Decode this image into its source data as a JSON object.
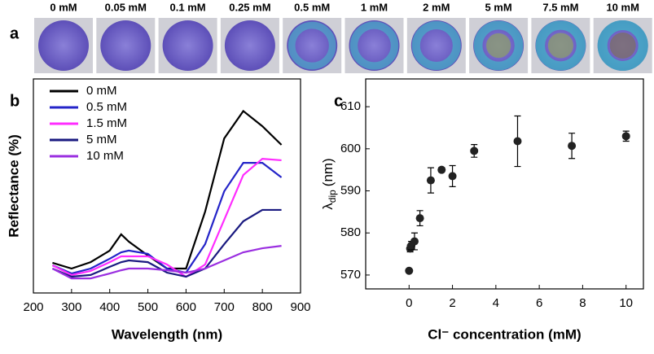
{
  "images": {
    "label": "a",
    "captions": [
      "0 mM",
      "0.05 mM",
      "0.1 mM",
      "0.25 mM",
      "0.5 mM",
      "1 mM",
      "2 mM",
      "5 mM",
      "7.5 mM",
      "10 mM"
    ]
  },
  "chart_data": [
    {
      "type": "line",
      "panel_label": "b",
      "x_label": "Wavelength (nm)",
      "y_label": "Reflectance (%)",
      "x": [
        250,
        300,
        350,
        400,
        430,
        450,
        500,
        550,
        600,
        650,
        700,
        750,
        800,
        850
      ],
      "xlim": [
        200,
        900
      ],
      "xticks": [
        200,
        300,
        400,
        500,
        600,
        700,
        800,
        900
      ],
      "ylim": [
        0,
        100
      ],
      "legend": "upper left",
      "series": [
        {
          "name": "0 mM",
          "color": "#000000",
          "values": [
            14.1,
            11.4,
            14.4,
            19.8,
            27.4,
            24,
            17.5,
            11.4,
            11.4,
            38,
            72.2,
            85,
            77.9,
            69.2
          ]
        },
        {
          "name": "0.5 mM",
          "color": "#2424c8",
          "values": [
            12.9,
            9.1,
            11.4,
            16,
            19,
            19.8,
            18.3,
            11.4,
            9.5,
            22.8,
            47.5,
            60.8,
            60.8,
            54
          ]
        },
        {
          "name": "1.5 mM",
          "color": "#ff2cff",
          "values": [
            12.9,
            8.4,
            10.3,
            14.4,
            17.1,
            17.1,
            17.1,
            13.3,
            7.6,
            13.3,
            34.2,
            55.1,
            62.7,
            62
          ]
        },
        {
          "name": "5 mM",
          "color": "#1a1a80",
          "values": [
            11.4,
            7.6,
            8.4,
            12.2,
            14.4,
            15.2,
            14.4,
            9.5,
            7.6,
            11.4,
            22.8,
            33.5,
            38.8,
            38.8
          ]
        },
        {
          "name": "10 mM",
          "color": "#9a2ee0",
          "values": [
            11.4,
            6.8,
            6.8,
            9.1,
            10.6,
            11.4,
            11.4,
            10.6,
            9.5,
            11.4,
            15.2,
            19,
            20.9,
            22
          ]
        }
      ]
    },
    {
      "type": "scatter",
      "panel_label": "c",
      "x_label": "Cl⁻ concentration (mM)",
      "y_label": {
        "symbol": "λ",
        "subscript": "dip",
        "unit": "(nm)"
      },
      "x": [
        0,
        0.05,
        0.1,
        0.25,
        0.5,
        1,
        1.5,
        2,
        3,
        5,
        7.5,
        10
      ],
      "values": [
        571,
        576.3,
        577,
        578,
        583.5,
        592.5,
        595,
        593.5,
        599.5,
        601.8,
        600.7,
        603
      ],
      "errors": [
        0.3,
        0.8,
        1,
        2,
        1.8,
        3,
        0.5,
        2.5,
        1.5,
        6,
        3,
        1.2
      ],
      "color": "#222222",
      "xlim": [
        -2,
        10.8
      ],
      "xticks": [
        0,
        2,
        4,
        6,
        8,
        10
      ],
      "ylim": [
        566.7,
        616.6
      ],
      "yticks": [
        570,
        580,
        590,
        600,
        610
      ]
    }
  ]
}
